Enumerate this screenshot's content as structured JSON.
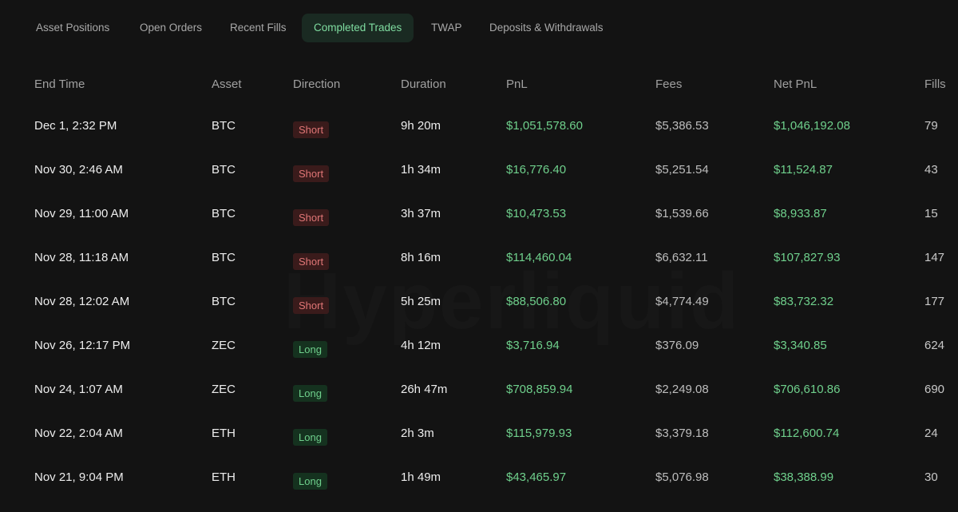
{
  "tabs": [
    {
      "label": "Asset Positions",
      "active": false
    },
    {
      "label": "Open Orders",
      "active": false
    },
    {
      "label": "Recent Fills",
      "active": false
    },
    {
      "label": "Completed Trades",
      "active": true
    },
    {
      "label": "TWAP",
      "active": false
    },
    {
      "label": "Deposits & Withdrawals",
      "active": false
    }
  ],
  "columns": {
    "end_time": "End Time",
    "asset": "Asset",
    "direction": "Direction",
    "duration": "Duration",
    "pnl": "PnL",
    "fees": "Fees",
    "net_pnl": "Net PnL",
    "fills": "Fills"
  },
  "rows": [
    {
      "end_time": "Dec 1, 2:32 PM",
      "asset": "BTC",
      "direction": "Short",
      "duration": "9h 20m",
      "pnl": "$1,051,578.60",
      "fees": "$5,386.53",
      "net_pnl": "$1,046,192.08",
      "fills": "79"
    },
    {
      "end_time": "Nov 30, 2:46 AM",
      "asset": "BTC",
      "direction": "Short",
      "duration": "1h 34m",
      "pnl": "$16,776.40",
      "fees": "$5,251.54",
      "net_pnl": "$11,524.87",
      "fills": "43"
    },
    {
      "end_time": "Nov 29, 11:00 AM",
      "asset": "BTC",
      "direction": "Short",
      "duration": "3h 37m",
      "pnl": "$10,473.53",
      "fees": "$1,539.66",
      "net_pnl": "$8,933.87",
      "fills": "15"
    },
    {
      "end_time": "Nov 28, 11:18 AM",
      "asset": "BTC",
      "direction": "Short",
      "duration": "8h 16m",
      "pnl": "$114,460.04",
      "fees": "$6,632.11",
      "net_pnl": "$107,827.93",
      "fills": "147"
    },
    {
      "end_time": "Nov 28, 12:02 AM",
      "asset": "BTC",
      "direction": "Short",
      "duration": "5h 25m",
      "pnl": "$88,506.80",
      "fees": "$4,774.49",
      "net_pnl": "$83,732.32",
      "fills": "177"
    },
    {
      "end_time": "Nov 26, 12:17 PM",
      "asset": "ZEC",
      "direction": "Long",
      "duration": "4h 12m",
      "pnl": "$3,716.94",
      "fees": "$376.09",
      "net_pnl": "$3,340.85",
      "fills": "624"
    },
    {
      "end_time": "Nov 24, 1:07 AM",
      "asset": "ZEC",
      "direction": "Long",
      "duration": "26h 47m",
      "pnl": "$708,859.94",
      "fees": "$2,249.08",
      "net_pnl": "$706,610.86",
      "fills": "690"
    },
    {
      "end_time": "Nov 22, 2:04 AM",
      "asset": "ETH",
      "direction": "Long",
      "duration": "2h 3m",
      "pnl": "$115,979.93",
      "fees": "$3,379.18",
      "net_pnl": "$112,600.74",
      "fills": "24"
    },
    {
      "end_time": "Nov 21, 9:04 PM",
      "asset": "ETH",
      "direction": "Long",
      "duration": "1h 49m",
      "pnl": "$43,465.97",
      "fees": "$5,076.98",
      "net_pnl": "$38,388.99",
      "fills": "30"
    }
  ],
  "colors": {
    "background": "#131313",
    "positive": "#6fd08c",
    "short": "#e07676",
    "active_tab_bg": "#1a2a22"
  }
}
